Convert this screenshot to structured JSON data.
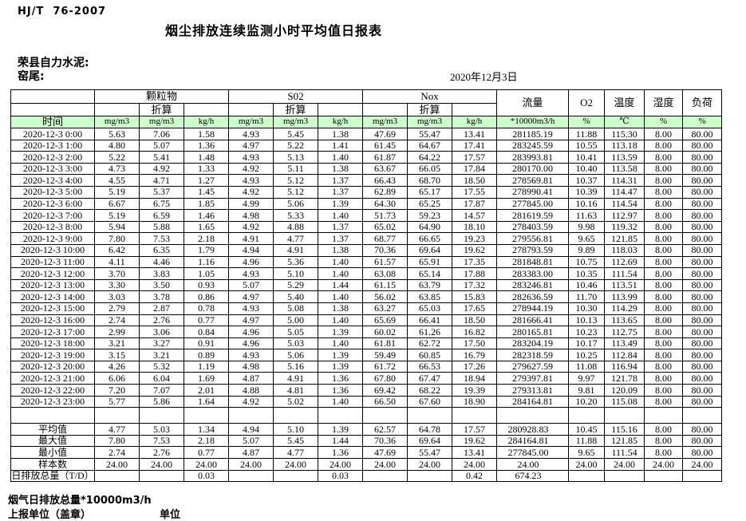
{
  "header": {
    "standard": "HJ/T  76-2007",
    "title": "烟尘排放连续监测小时平均值日报表",
    "company": "荣县自力水泥:",
    "point": "窑尾:",
    "date": "2020年12月3日"
  },
  "colors": {
    "header_green": "#ccffcc",
    "border": "#000000",
    "text": "#000000"
  },
  "table": {
    "time_label": "时间",
    "converted_label": "折算",
    "groups": {
      "pm": "颗粒物",
      "so2": "S02",
      "nox": "Nox",
      "flow": "流量",
      "o2": "O2",
      "temp": "温度",
      "humidity": "湿度",
      "load": "负荷"
    },
    "units": {
      "mg": "mg/m3",
      "kgh": "kg/h",
      "flow": "*10000m3/h",
      "percent": "%",
      "celsius": "℃"
    },
    "rows": [
      {
        "time": "2020-12-3  0:00",
        "values": [
          "5.63",
          "7.06",
          "1.58",
          "4.93",
          "5.45",
          "1.38",
          "47.69",
          "55.47",
          "13.41",
          "281185.19",
          "11.88",
          "115.30",
          "8.00",
          "80.00"
        ]
      },
      {
        "time": "2020-12-3  1:00",
        "values": [
          "4.80",
          "5.07",
          "1.36",
          "4.97",
          "5.22",
          "1.41",
          "61.45",
          "64.67",
          "17.41",
          "283245.59",
          "10.55",
          "113.18",
          "8.00",
          "80.00"
        ]
      },
      {
        "time": "2020-12-3  2:00",
        "values": [
          "5.22",
          "5.41",
          "1.48",
          "4.93",
          "5.13",
          "1.40",
          "61.87",
          "64.22",
          "17.57",
          "283993.81",
          "10.41",
          "113.59",
          "8.00",
          "80.00"
        ]
      },
      {
        "time": "2020-12-3  3:00",
        "values": [
          "4.73",
          "4.92",
          "1.33",
          "4.92",
          "5.11",
          "1.38",
          "63.67",
          "66.05",
          "17.84",
          "280170.00",
          "10.40",
          "113.58",
          "8.00",
          "80.00"
        ]
      },
      {
        "time": "2020-12-3  4:00",
        "values": [
          "4.55",
          "4.71",
          "1.27",
          "4.93",
          "5.12",
          "1.37",
          "66.43",
          "68.70",
          "18.50",
          "278569.81",
          "10.37",
          "114.31",
          "8.00",
          "80.00"
        ]
      },
      {
        "time": "2020-12-3  5:00",
        "values": [
          "5.19",
          "5.37",
          "1.45",
          "4.92",
          "5.12",
          "1.37",
          "62.89",
          "65.17",
          "17.55",
          "278990.41",
          "10.39",
          "114.47",
          "8.00",
          "80.00"
        ]
      },
      {
        "time": "2020-12-3  6:00",
        "values": [
          "6.67",
          "6.75",
          "1.85",
          "4.99",
          "5.06",
          "1.39",
          "64.30",
          "65.25",
          "17.87",
          "277845.00",
          "10.16",
          "114.54",
          "8.00",
          "80.00"
        ]
      },
      {
        "time": "2020-12-3  7:00",
        "values": [
          "5.19",
          "6.59",
          "1.46",
          "4.98",
          "5.33",
          "1.40",
          "51.73",
          "59.23",
          "14.57",
          "281619.59",
          "11.63",
          "112.97",
          "8.00",
          "80.00"
        ]
      },
      {
        "time": "2020-12-3  8:00",
        "values": [
          "5.94",
          "5.88",
          "1.65",
          "4.92",
          "4.88",
          "1.37",
          "65.02",
          "64.90",
          "18.10",
          "278403.59",
          "9.98",
          "119.32",
          "8.00",
          "80.00"
        ]
      },
      {
        "time": "2020-12-3  9:00",
        "values": [
          "7.80",
          "7.53",
          "2.18",
          "4.91",
          "4.77",
          "1.37",
          "68.77",
          "66.65",
          "19.23",
          "279556.81",
          "9.65",
          "121.85",
          "8.00",
          "80.00"
        ]
      },
      {
        "time": "2020-12-3 10:00",
        "values": [
          "6.42",
          "6.35",
          "1.79",
          "4.94",
          "4.91",
          "1.38",
          "70.36",
          "69.64",
          "19.62",
          "278793.59",
          "9.89",
          "118.03",
          "8.00",
          "80.00"
        ]
      },
      {
        "time": "2020-12-3 11:00",
        "values": [
          "4.11",
          "4.46",
          "1.16",
          "4.96",
          "5.36",
          "1.40",
          "61.57",
          "65.91",
          "17.35",
          "281848.81",
          "10.75",
          "112.69",
          "8.00",
          "80.00"
        ]
      },
      {
        "time": "2020-12-3 12:00",
        "values": [
          "3.70",
          "3.83",
          "1.05",
          "4.93",
          "5.10",
          "1.40",
          "63.08",
          "65.14",
          "17.88",
          "283383.00",
          "10.35",
          "111.54",
          "8.00",
          "80.00"
        ]
      },
      {
        "time": "2020-12-3 13:00",
        "values": [
          "3.30",
          "3.50",
          "0.93",
          "5.07",
          "5.29",
          "1.44",
          "61.15",
          "63.79",
          "17.32",
          "283246.81",
          "10.46",
          "113.51",
          "8.00",
          "80.00"
        ]
      },
      {
        "time": "2020-12-3 14:00",
        "values": [
          "3.03",
          "3.78",
          "0.86",
          "4.97",
          "5.40",
          "1.40",
          "56.02",
          "63.85",
          "15.83",
          "282636.59",
          "11.70",
          "113.99",
          "8.00",
          "80.00"
        ]
      },
      {
        "time": "2020-12-3 15:00",
        "values": [
          "2.79",
          "2.87",
          "0.78",
          "4.93",
          "5.08",
          "1.38",
          "63.27",
          "65.03",
          "17.65",
          "278944.19",
          "10.30",
          "114.29",
          "8.00",
          "80.00"
        ]
      },
      {
        "time": "2020-12-3 16:00",
        "values": [
          "2.74",
          "2.76",
          "0.77",
          "4.97",
          "5.00",
          "1.40",
          "65.69",
          "66.41",
          "18.50",
          "281666.41",
          "10.13",
          "113.65",
          "8.00",
          "80.00"
        ]
      },
      {
        "time": "2020-12-3 17:00",
        "values": [
          "2.99",
          "3.06",
          "0.84",
          "4.96",
          "5.05",
          "1.39",
          "60.02",
          "61.26",
          "16.82",
          "280165.81",
          "10.23",
          "112.75",
          "8.00",
          "80.00"
        ]
      },
      {
        "time": "2020-12-3 18:00",
        "values": [
          "3.21",
          "3.27",
          "0.91",
          "4.96",
          "5.03",
          "1.40",
          "61.81",
          "62.72",
          "17.50",
          "283204.19",
          "10.17",
          "113.49",
          "8.00",
          "80.00"
        ]
      },
      {
        "time": "2020-12-3 19:00",
        "values": [
          "3.15",
          "3.21",
          "0.89",
          "4.93",
          "5.06",
          "1.39",
          "59.49",
          "60.85",
          "16.79",
          "282318.59",
          "10.25",
          "112.84",
          "8.00",
          "80.00"
        ]
      },
      {
        "time": "2020-12-3 20:00",
        "values": [
          "4.26",
          "5.32",
          "1.19",
          "4.98",
          "5.16",
          "1.39",
          "61.72",
          "66.53",
          "17.26",
          "279627.59",
          "11.08",
          "116.94",
          "8.00",
          "80.00"
        ]
      },
      {
        "time": "2020-12-3 21:00",
        "values": [
          "6.06",
          "6.04",
          "1.69",
          "4.87",
          "4.91",
          "1.36",
          "67.80",
          "67.47",
          "18.94",
          "279397.81",
          "9.97",
          "121.78",
          "8.00",
          "80.00"
        ]
      },
      {
        "time": "2020-12-3 22:00",
        "values": [
          "7.20",
          "7.07",
          "2.01",
          "4.88",
          "4.81",
          "1.36",
          "69.42",
          "68.22",
          "19.39",
          "279313.81",
          "9.81",
          "120.09",
          "8.00",
          "80.00"
        ]
      },
      {
        "time": "2020-12-3 23:00",
        "values": [
          "5.77",
          "5.86",
          "1.64",
          "4.92",
          "5.02",
          "1.40",
          "66.50",
          "67.60",
          "18.90",
          "284164.81",
          "10.20",
          "115.08",
          "8.00",
          "80.00"
        ]
      }
    ],
    "summary": [
      {
        "label": "平均值",
        "values": [
          "4.77",
          "5.03",
          "1.34",
          "4.94",
          "5.10",
          "1.39",
          "62.57",
          "64.78",
          "17.57",
          "280928.83",
          "10.45",
          "115.16",
          "8.00",
          "80.00"
        ]
      },
      {
        "label": "最大值",
        "values": [
          "7.80",
          "7.53",
          "2.18",
          "5.07",
          "5.45",
          "1.44",
          "70.36",
          "69.64",
          "19.62",
          "284164.81",
          "11.88",
          "121.85",
          "8.00",
          "80.00"
        ]
      },
      {
        "label": "最小值",
        "values": [
          "2.74",
          "2.76",
          "0.77",
          "4.87",
          "4.77",
          "1.36",
          "47.69",
          "55.47",
          "13.41",
          "277845.00",
          "9.65",
          "111.54",
          "8.00",
          "80.00"
        ]
      },
      {
        "label": "样本数",
        "values": [
          "24.00",
          "24.00",
          "24.00",
          "24.00",
          "24.00",
          "24.00",
          "24.00",
          "24.00",
          "24.00",
          "24.00",
          "24.00",
          "24.00",
          "24.00",
          "24.00"
        ]
      },
      {
        "label": "日排放总量（T/D）",
        "values": [
          "",
          "",
          "0.03",
          "",
          "",
          "0.03",
          "",
          "",
          "0.42",
          "674.23",
          "",
          "",
          "",
          ""
        ]
      }
    ]
  },
  "footer": {
    "flue_total": "烟气日排放总量*10000m3/h",
    "report_org": "上报单位（盖章）",
    "unit": "单位"
  }
}
